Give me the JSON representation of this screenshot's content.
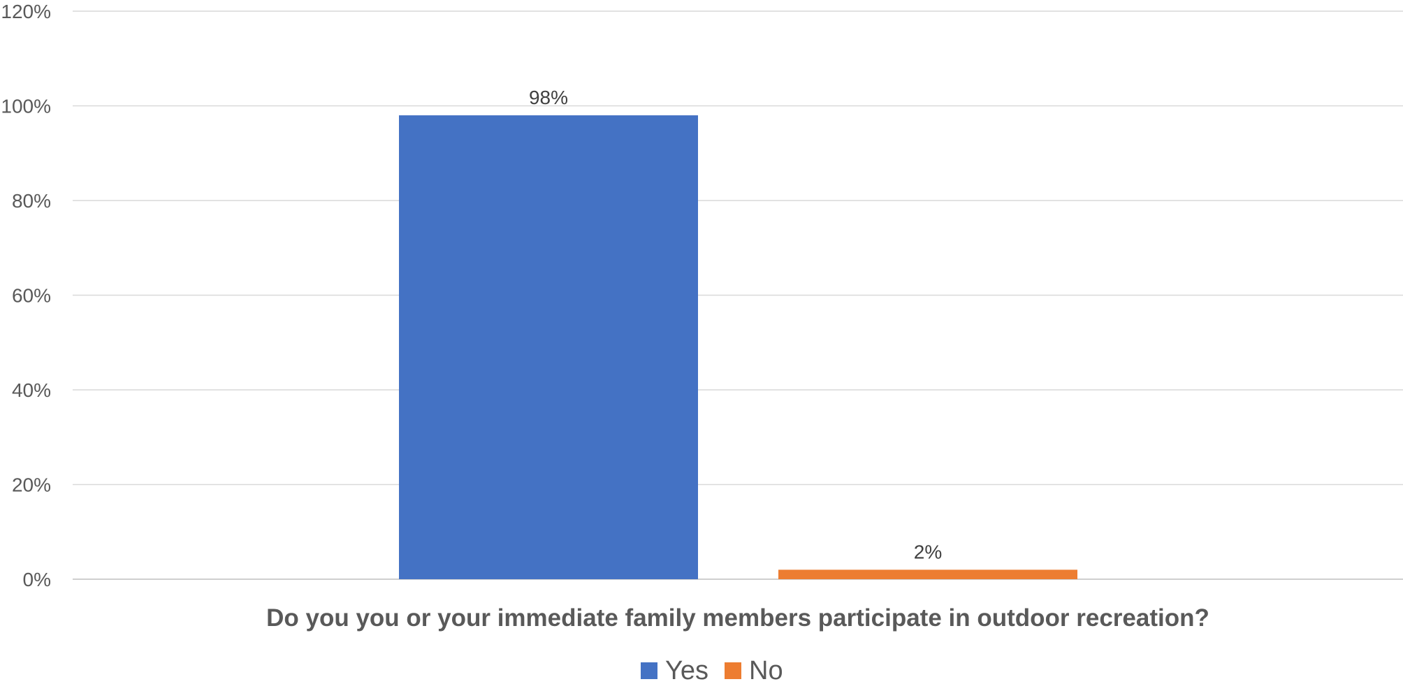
{
  "chart_data": {
    "type": "bar",
    "title": "",
    "xlabel": "Do you you or your immediate family members participate in outdoor recreation?",
    "ylabel": "",
    "ylim": [
      0,
      120
    ],
    "yticks": [
      "0%",
      "20%",
      "40%",
      "60%",
      "80%",
      "100%",
      "120%"
    ],
    "ytick_values": [
      0,
      20,
      40,
      60,
      80,
      100,
      120
    ],
    "grid": true,
    "legend_position": "bottom",
    "series": [
      {
        "name": "Yes",
        "values": [
          98
        ],
        "label": "98%",
        "color": "#4472C4"
      },
      {
        "name": "No",
        "values": [
          2
        ],
        "label": "2%",
        "color": "#ED7D31"
      }
    ]
  }
}
